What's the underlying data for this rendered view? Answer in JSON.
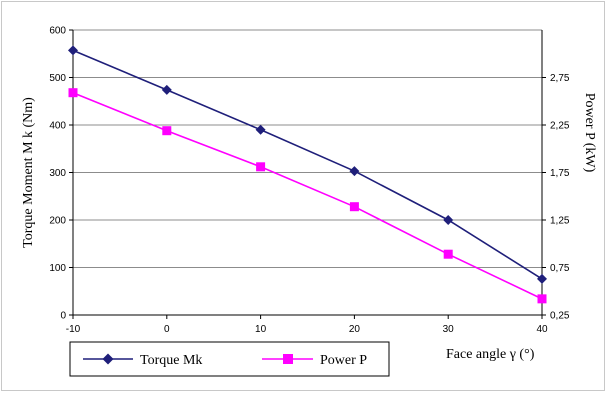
{
  "chart_data": {
    "type": "line",
    "x": [
      -10,
      0,
      10,
      20,
      30,
      40
    ],
    "xlabel": "Face angle γ  (°)",
    "x_ticks": [
      "-10",
      "0",
      "10",
      "20",
      "30",
      "40"
    ],
    "xlim": [
      -10,
      40
    ],
    "ylabel_left": "Torque Moment  M k (Nm)",
    "ylim_left": [
      0,
      600
    ],
    "y_ticks_left": [
      "0",
      "100",
      "200",
      "300",
      "400",
      "500",
      "600"
    ],
    "ylabel_right": "Power  P  (kW)",
    "ylim_right": [
      0.25,
      3.25
    ],
    "y_ticks_right": [
      "0,25",
      "0,75",
      "1,25",
      "1,75",
      "2,25",
      "2,75"
    ],
    "grid": "horizontal",
    "legend_position": "bottom-left",
    "series": [
      {
        "name": "Torque Mk",
        "axis": "left",
        "color": "#1f1f7a",
        "marker": "diamond",
        "values": [
          557,
          474,
          390,
          303,
          200,
          76
        ]
      },
      {
        "name": "Power P",
        "axis": "right",
        "color": "#ff00ff",
        "marker": "square",
        "values": [
          2.59,
          2.19,
          1.81,
          1.39,
          0.89,
          0.42
        ]
      }
    ]
  }
}
